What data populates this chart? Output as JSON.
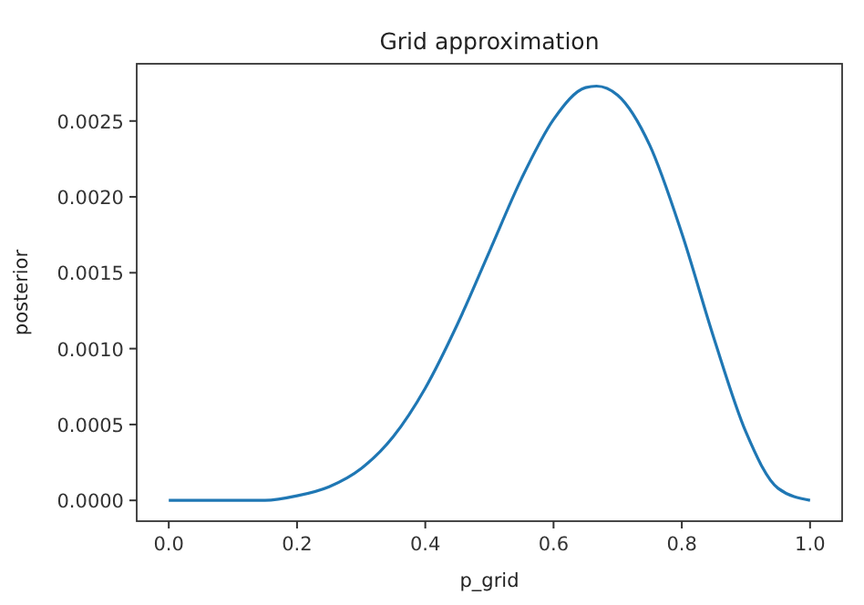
{
  "chart_data": {
    "type": "line",
    "title": "Grid approximation",
    "xlabel": "p_grid",
    "ylabel": "posterior",
    "xlim": [
      -0.05,
      1.05
    ],
    "xticks": [
      {
        "value": 0,
        "label": "0.0"
      },
      {
        "value": 0.2,
        "label": "0.2"
      },
      {
        "value": 0.4,
        "label": "0.4"
      },
      {
        "value": 0.6,
        "label": "0.6"
      },
      {
        "value": 0.8,
        "label": "0.8"
      },
      {
        "value": 1,
        "label": "1.0"
      }
    ],
    "ylim": [
      -0.000137,
      0.002877
    ],
    "yticks": [
      {
        "value": 0,
        "label": "0.0000"
      },
      {
        "value": 0.0005,
        "label": "0.0005"
      },
      {
        "value": 0.001,
        "label": "0.0010"
      },
      {
        "value": 0.0015,
        "label": "0.0015"
      },
      {
        "value": 0.002,
        "label": "0.0020"
      },
      {
        "value": 0.0025,
        "label": "0.0025"
      }
    ],
    "grid": false,
    "marker": "none",
    "line_style": "solid",
    "series": [
      {
        "color": "#1f77b4",
        "x": [
          0,
          0.05,
          0.1,
          0.15,
          0.2,
          0.25,
          0.3,
          0.35,
          0.4,
          0.45,
          0.5,
          0.55,
          0.6,
          0.65,
          0.667,
          0.7,
          0.75,
          0.8,
          0.85,
          0.9,
          0.95,
          1
        ],
        "values": [
          0,
          0,
          0,
          0,
          3e-05,
          9e-05,
          0.00021,
          0.00042,
          0.00074,
          0.00116,
          0.00164,
          0.00212,
          0.00251,
          0.00272,
          0.00273,
          0.00267,
          0.00234,
          0.00176,
          0.00107,
          0.00045,
          8e-05,
          0
        ]
      }
    ]
  }
}
